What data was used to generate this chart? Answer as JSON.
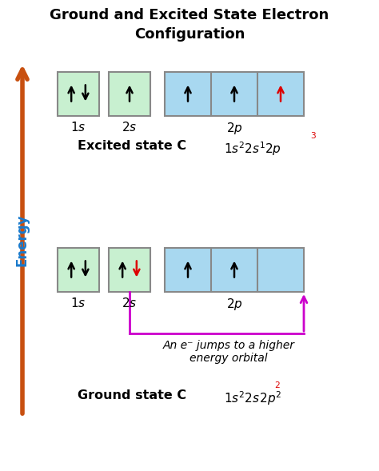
{
  "title_line1": "Ground and Excited State Electron",
  "title_line2": "Configuration",
  "title_fontsize": 13,
  "bg_color": "#ffffff",
  "green_fill": "#c8f0d0",
  "green_edge": "#888888",
  "blue_fill": "#a8d8f0",
  "blue_edge": "#888888",
  "energy_arrow_color": "#c85010",
  "magenta_color": "#cc00cc",
  "red_color": "#dd0000",
  "black_color": "#000000",
  "blue_text_color": "#1a7acc",
  "excited_label": "Excited state C",
  "ground_label": "Ground state C",
  "annotation_text": "An e⁻ jumps to a higher\nenergy orbital",
  "fig_w": 4.74,
  "fig_h": 5.89,
  "dpi": 100
}
